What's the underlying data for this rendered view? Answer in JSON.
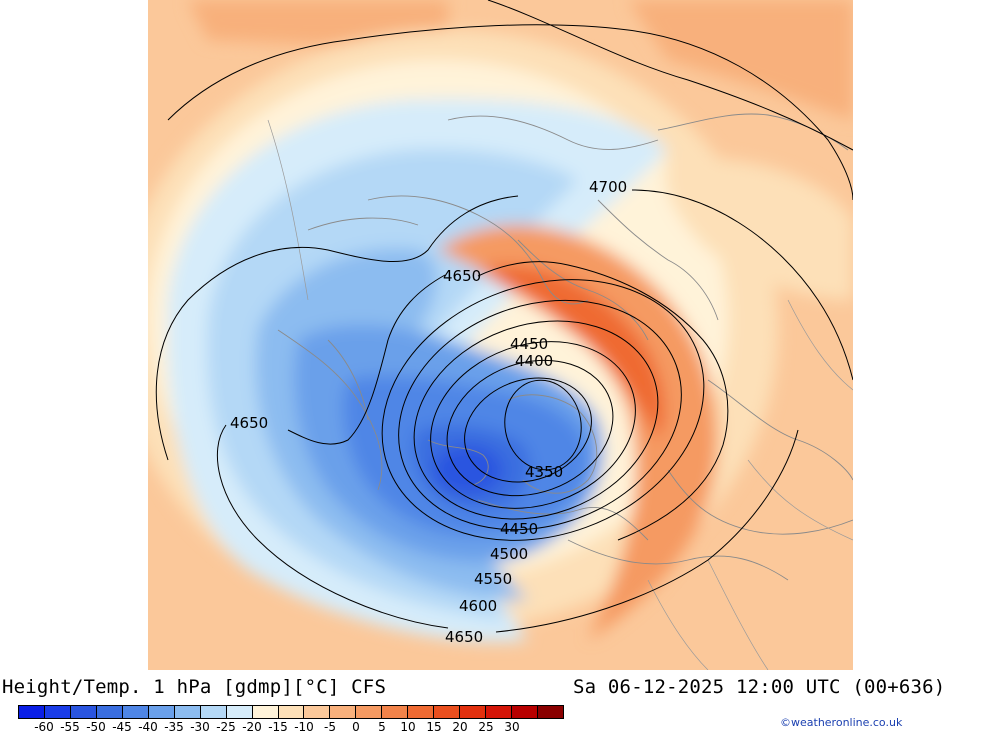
{
  "footer": {
    "title": "Height/Temp. 1 hPa [gdmp][°C] CFS",
    "datetime": "Sa 06-12-2025 12:00 UTC (00+636)",
    "copyright": "©weatheronline.co.uk"
  },
  "colorbar": {
    "colors": [
      "#0a1ee6",
      "#1a3ce8",
      "#2a55e0",
      "#3a6ee0",
      "#4f86e6",
      "#6aa0ea",
      "#8cbcf0",
      "#b4d8f6",
      "#d6ecfa",
      "#fff3d9",
      "#fde0b8",
      "#fbc89a",
      "#f8b07c",
      "#f59a62",
      "#f2834a",
      "#ef6a32",
      "#ea4f1e",
      "#e2300e",
      "#d41508",
      "#b80000",
      "#8a0000"
    ],
    "ticks": [
      "-60",
      "-55",
      "-50",
      "-45",
      "-40",
      "-35",
      "-30",
      "-25",
      "-20",
      "-15",
      "-10",
      "-5",
      "0",
      "5",
      "10",
      "15",
      "20",
      "25",
      "30"
    ]
  },
  "map": {
    "contour_labels": [
      "4700",
      "4650",
      "4450",
      "4400",
      "4650",
      "4350",
      "4450",
      "4500",
      "4550",
      "4600",
      "4650"
    ]
  }
}
